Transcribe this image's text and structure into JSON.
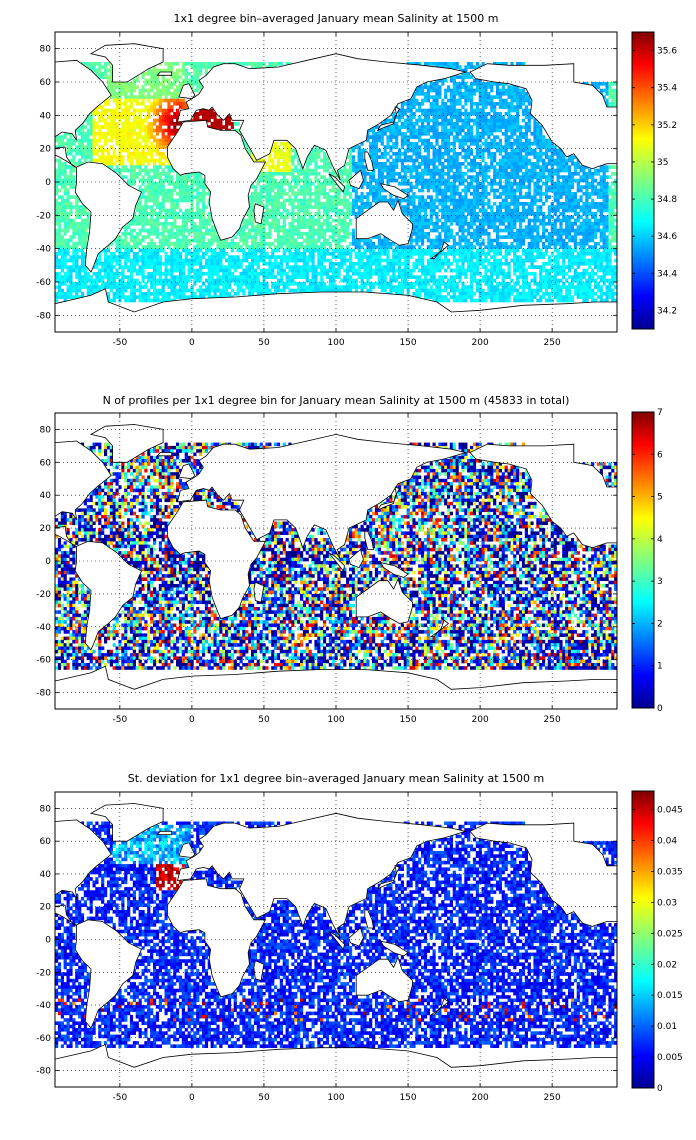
{
  "panels": [
    {
      "title": "1x1 degree bin–averaged January mean Salinity at 1500 m",
      "colorbar": {
        "min": 34.1,
        "max": 35.7,
        "ticks": [
          34.2,
          34.4,
          34.6,
          34.8,
          35,
          35.2,
          35.4,
          35.6
        ],
        "tick_labels": [
          "34.2",
          "34.4",
          "34.6",
          "34.8",
          "35",
          "35.2",
          "35.4",
          "35.6"
        ],
        "colormap": "jet"
      },
      "variable": "salinity"
    },
    {
      "title": "N of profiles per 1x1 degree bin for January mean Salinity at 1500 m (45833 in total)",
      "colorbar": {
        "min": 0,
        "max": 7,
        "ticks": [
          0,
          1,
          2,
          3,
          4,
          5,
          6,
          7
        ],
        "tick_labels": [
          "0",
          "1",
          "2",
          "3",
          "4",
          "5",
          "6",
          "7"
        ],
        "colormap": "jet"
      },
      "variable": "count"
    },
    {
      "title": "St. deviation for 1x1 degree bin–averaged January mean Salinity at 1500 m",
      "colorbar": {
        "min": 0,
        "max": 0.048,
        "ticks": [
          0,
          0.005,
          0.01,
          0.015,
          0.02,
          0.025,
          0.03,
          0.035,
          0.04,
          0.045
        ],
        "tick_labels": [
          "0",
          "0.005",
          "0.01",
          "0.015",
          "0.02",
          "0.025",
          "0.03",
          "0.035",
          "0.04",
          "0.045"
        ],
        "colormap": "jet"
      },
      "variable": "stdev"
    }
  ],
  "axes": {
    "xlim": [
      -95,
      295
    ],
    "ylim": [
      -90,
      90
    ],
    "x_ticks": [
      -50,
      0,
      50,
      100,
      150,
      200,
      250
    ],
    "x_tick_labels": [
      "-50",
      "0",
      "50",
      "100",
      "150",
      "200",
      "250"
    ],
    "y_ticks": [
      -80,
      -60,
      -40,
      -20,
      0,
      20,
      40,
      60,
      80
    ],
    "y_tick_labels": [
      "-80",
      "-60",
      "-40",
      "-20",
      "0",
      "20",
      "40",
      "60",
      "80"
    ],
    "grid": "dotted"
  }
}
